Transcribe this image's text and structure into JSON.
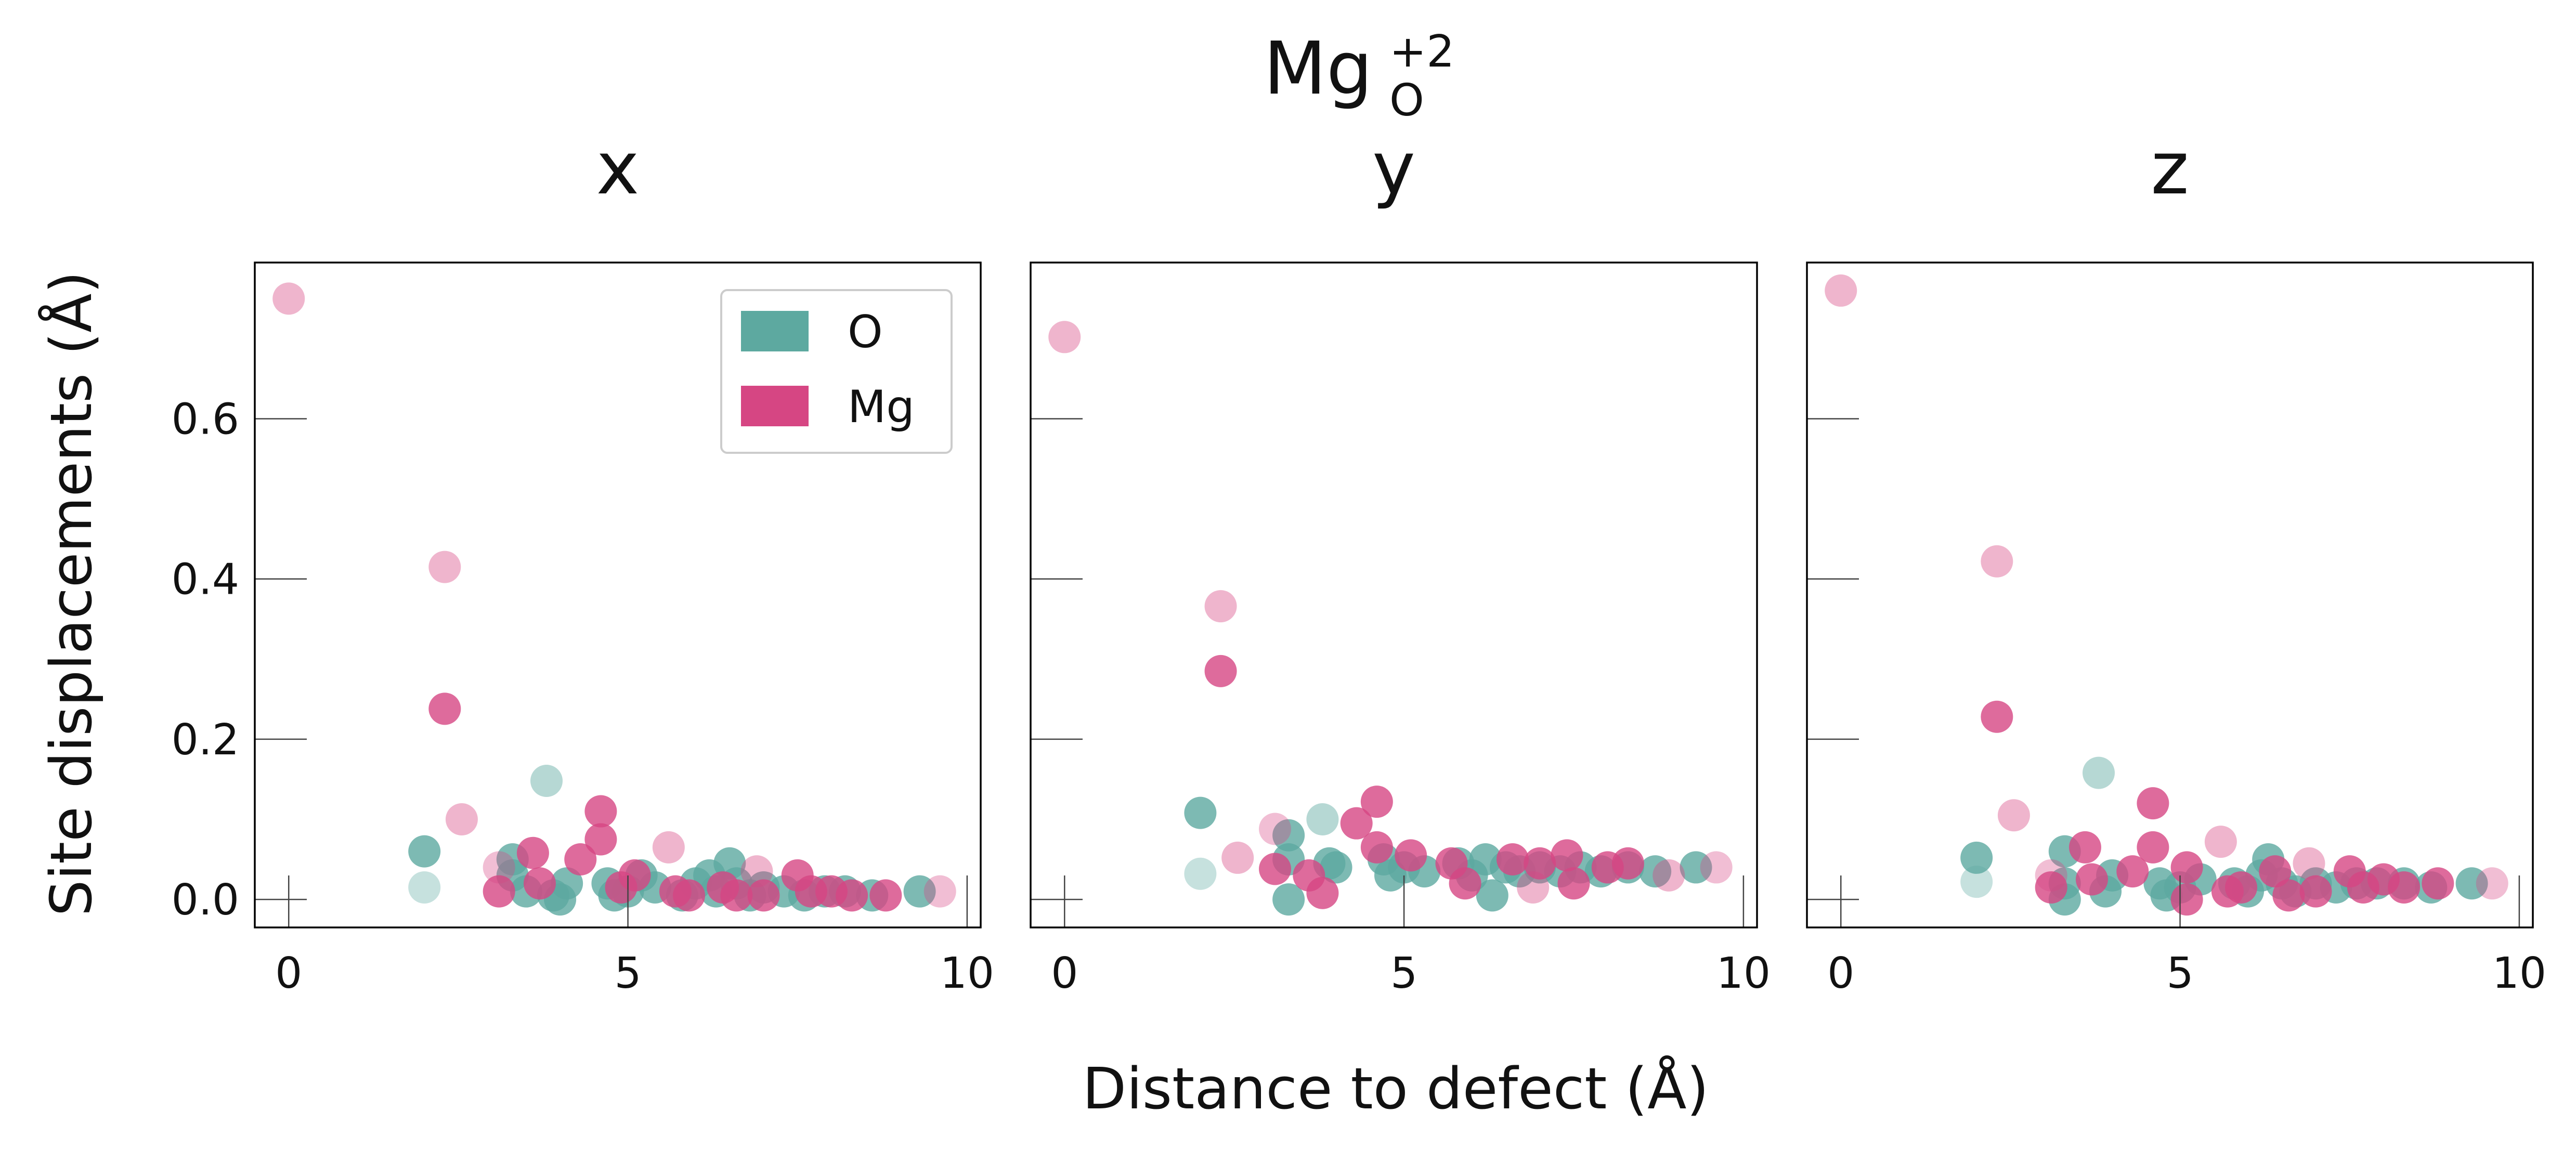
{
  "figure": {
    "title_base": "Mg",
    "title_sup": "+2",
    "title_sub": "O",
    "xlabel": "Distance to defect (Å)",
    "ylabel": "Site displacements (Å)"
  },
  "legend": {
    "items": [
      {
        "label": "O",
        "color": "#5DA9A0"
      },
      {
        "label": "Mg",
        "color": "#D64683"
      }
    ],
    "placement": "top-right of first panel"
  },
  "chart_data": [
    {
      "type": "scatter",
      "title": "x",
      "xlim": [
        -0.5,
        10.2
      ],
      "ylim": [
        -0.035,
        0.795
      ],
      "xticks": [
        0,
        5,
        10
      ],
      "xticklabels": [
        "0",
        "5",
        "10"
      ],
      "yticks": [
        0.0,
        0.2,
        0.4,
        0.6
      ],
      "yticklabels": [
        "0.0",
        "0.2",
        "0.4",
        "0.6"
      ],
      "grid": false,
      "series": [
        {
          "name": "O",
          "color": "#5DA9A0",
          "points": [
            [
              2.0,
              0.015,
              0.35
            ],
            [
              2.0,
              0.06,
              0.8
            ],
            [
              3.3,
              0.05,
              0.8
            ],
            [
              3.3,
              0.03,
              0.8
            ],
            [
              3.5,
              0.01,
              0.8
            ],
            [
              3.8,
              0.148,
              0.45
            ],
            [
              3.9,
              0.005,
              0.8
            ],
            [
              4.0,
              0.0,
              0.8
            ],
            [
              4.1,
              0.02,
              0.8
            ],
            [
              4.7,
              0.02,
              0.8
            ],
            [
              4.8,
              0.005,
              0.8
            ],
            [
              5.0,
              0.01,
              0.8
            ],
            [
              5.2,
              0.03,
              0.8
            ],
            [
              5.4,
              0.015,
              0.8
            ],
            [
              5.8,
              0.005,
              0.8
            ],
            [
              6.0,
              0.02,
              0.8
            ],
            [
              6.2,
              0.03,
              0.8
            ],
            [
              6.3,
              0.01,
              0.8
            ],
            [
              6.5,
              0.045,
              0.8
            ],
            [
              6.6,
              0.02,
              0.8
            ],
            [
              6.8,
              0.005,
              0.8
            ],
            [
              7.0,
              0.015,
              0.8
            ],
            [
              7.3,
              0.01,
              0.8
            ],
            [
              7.6,
              0.005,
              0.8
            ],
            [
              7.9,
              0.01,
              0.8
            ],
            [
              8.2,
              0.01,
              0.8
            ],
            [
              8.6,
              0.005,
              0.8
            ],
            [
              9.3,
              0.01,
              0.8
            ]
          ]
        },
        {
          "name": "Mg",
          "color": "#D64683",
          "points": [
            [
              0.0,
              0.75,
              0.4
            ],
            [
              2.3,
              0.415,
              0.4
            ],
            [
              2.3,
              0.238,
              0.8
            ],
            [
              2.55,
              0.1,
              0.4
            ],
            [
              3.1,
              0.04,
              0.35
            ],
            [
              3.1,
              0.01,
              0.8
            ],
            [
              3.6,
              0.058,
              0.8
            ],
            [
              3.7,
              0.02,
              0.8
            ],
            [
              4.3,
              0.05,
              0.8
            ],
            [
              4.6,
              0.11,
              0.8
            ],
            [
              4.6,
              0.075,
              0.8
            ],
            [
              4.9,
              0.015,
              0.8
            ],
            [
              5.1,
              0.03,
              0.8
            ],
            [
              5.6,
              0.065,
              0.4
            ],
            [
              5.7,
              0.01,
              0.8
            ],
            [
              5.9,
              0.005,
              0.8
            ],
            [
              6.4,
              0.015,
              0.8
            ],
            [
              6.6,
              0.005,
              0.8
            ],
            [
              6.9,
              0.035,
              0.4
            ],
            [
              7.0,
              0.005,
              0.8
            ],
            [
              7.5,
              0.03,
              0.8
            ],
            [
              7.7,
              0.01,
              0.8
            ],
            [
              8.0,
              0.01,
              0.8
            ],
            [
              8.3,
              0.005,
              0.8
            ],
            [
              8.8,
              0.005,
              0.8
            ],
            [
              9.6,
              0.01,
              0.35
            ]
          ]
        }
      ]
    },
    {
      "type": "scatter",
      "title": "y",
      "xlim": [
        -0.5,
        10.2
      ],
      "ylim": [
        -0.035,
        0.795
      ],
      "xticks": [
        0,
        5,
        10
      ],
      "xticklabels": [
        "0",
        "5",
        "10"
      ],
      "yticks": [
        0.0,
        0.2,
        0.4,
        0.6
      ],
      "yticklabels": [],
      "grid": false,
      "series": [
        {
          "name": "O",
          "color": "#5DA9A0",
          "points": [
            [
              2.0,
              0.032,
              0.35
            ],
            [
              2.0,
              0.108,
              0.8
            ],
            [
              3.3,
              0.08,
              0.8
            ],
            [
              3.3,
              0.05,
              0.8
            ],
            [
              3.3,
              0.0,
              0.8
            ],
            [
              3.8,
              0.1,
              0.45
            ],
            [
              3.9,
              0.045,
              0.8
            ],
            [
              4.0,
              0.04,
              0.8
            ],
            [
              4.7,
              0.05,
              0.8
            ],
            [
              4.8,
              0.03,
              0.8
            ],
            [
              5.0,
              0.04,
              0.8
            ],
            [
              5.3,
              0.035,
              0.8
            ],
            [
              5.8,
              0.045,
              0.8
            ],
            [
              6.0,
              0.03,
              0.8
            ],
            [
              6.2,
              0.05,
              0.8
            ],
            [
              6.3,
              0.005,
              0.8
            ],
            [
              6.5,
              0.04,
              0.8
            ],
            [
              6.7,
              0.035,
              0.8
            ],
            [
              7.0,
              0.04,
              0.8
            ],
            [
              7.3,
              0.035,
              0.8
            ],
            [
              7.6,
              0.04,
              0.8
            ],
            [
              7.9,
              0.035,
              0.8
            ],
            [
              8.3,
              0.04,
              0.8
            ],
            [
              8.7,
              0.035,
              0.8
            ],
            [
              9.3,
              0.04,
              0.8
            ]
          ]
        },
        {
          "name": "Mg",
          "color": "#D64683",
          "points": [
            [
              0.0,
              0.702,
              0.4
            ],
            [
              2.3,
              0.366,
              0.4
            ],
            [
              2.3,
              0.285,
              0.8
            ],
            [
              2.55,
              0.052,
              0.4
            ],
            [
              3.1,
              0.088,
              0.35
            ],
            [
              3.1,
              0.038,
              0.8
            ],
            [
              3.6,
              0.03,
              0.8
            ],
            [
              3.8,
              0.008,
              0.8
            ],
            [
              4.3,
              0.095,
              0.8
            ],
            [
              4.6,
              0.122,
              0.8
            ],
            [
              4.6,
              0.065,
              0.8
            ],
            [
              5.1,
              0.055,
              0.8
            ],
            [
              5.7,
              0.045,
              0.8
            ],
            [
              5.9,
              0.02,
              0.8
            ],
            [
              6.6,
              0.05,
              0.8
            ],
            [
              6.9,
              0.015,
              0.4
            ],
            [
              7.0,
              0.045,
              0.8
            ],
            [
              7.4,
              0.055,
              0.8
            ],
            [
              7.5,
              0.02,
              0.8
            ],
            [
              8.0,
              0.04,
              0.8
            ],
            [
              8.3,
              0.045,
              0.8
            ],
            [
              8.9,
              0.03,
              0.4
            ],
            [
              9.6,
              0.04,
              0.35
            ]
          ]
        }
      ]
    },
    {
      "type": "scatter",
      "title": "z",
      "xlim": [
        -0.5,
        10.2
      ],
      "ylim": [
        -0.035,
        0.795
      ],
      "xticks": [
        0,
        5,
        10
      ],
      "xticklabels": [
        "0",
        "5",
        "10"
      ],
      "yticks": [
        0.0,
        0.2,
        0.4,
        0.6
      ],
      "yticklabels": [],
      "grid": false,
      "series": [
        {
          "name": "O",
          "color": "#5DA9A0",
          "points": [
            [
              2.0,
              0.022,
              0.35
            ],
            [
              2.0,
              0.052,
              0.8
            ],
            [
              3.3,
              0.06,
              0.8
            ],
            [
              3.3,
              0.02,
              0.8
            ],
            [
              3.3,
              0.0,
              0.8
            ],
            [
              3.8,
              0.158,
              0.45
            ],
            [
              3.9,
              0.01,
              0.8
            ],
            [
              4.0,
              0.03,
              0.8
            ],
            [
              4.7,
              0.02,
              0.8
            ],
            [
              4.8,
              0.005,
              0.8
            ],
            [
              5.0,
              0.015,
              0.8
            ],
            [
              5.3,
              0.025,
              0.8
            ],
            [
              5.8,
              0.02,
              0.8
            ],
            [
              6.0,
              0.01,
              0.8
            ],
            [
              6.2,
              0.03,
              0.8
            ],
            [
              6.3,
              0.05,
              0.8
            ],
            [
              6.5,
              0.02,
              0.8
            ],
            [
              6.7,
              0.01,
              0.8
            ],
            [
              7.0,
              0.02,
              0.8
            ],
            [
              7.3,
              0.015,
              0.8
            ],
            [
              7.6,
              0.02,
              0.8
            ],
            [
              7.9,
              0.02,
              0.8
            ],
            [
              8.3,
              0.02,
              0.8
            ],
            [
              8.7,
              0.015,
              0.8
            ],
            [
              9.3,
              0.02,
              0.8
            ]
          ]
        },
        {
          "name": "Mg",
          "color": "#D64683",
          "points": [
            [
              0.0,
              0.76,
              0.4
            ],
            [
              2.3,
              0.422,
              0.4
            ],
            [
              2.3,
              0.228,
              0.8
            ],
            [
              2.55,
              0.105,
              0.4
            ],
            [
              3.1,
              0.03,
              0.35
            ],
            [
              3.1,
              0.015,
              0.8
            ],
            [
              3.6,
              0.065,
              0.8
            ],
            [
              3.7,
              0.025,
              0.8
            ],
            [
              4.3,
              0.035,
              0.8
            ],
            [
              4.6,
              0.12,
              0.8
            ],
            [
              4.6,
              0.065,
              0.8
            ],
            [
              5.1,
              0.0,
              0.8
            ],
            [
              5.1,
              0.04,
              0.8
            ],
            [
              5.6,
              0.072,
              0.4
            ],
            [
              5.7,
              0.01,
              0.8
            ],
            [
              5.9,
              0.015,
              0.8
            ],
            [
              6.4,
              0.035,
              0.8
            ],
            [
              6.6,
              0.005,
              0.8
            ],
            [
              6.9,
              0.045,
              0.4
            ],
            [
              7.0,
              0.01,
              0.8
            ],
            [
              7.5,
              0.035,
              0.8
            ],
            [
              7.7,
              0.015,
              0.8
            ],
            [
              8.0,
              0.025,
              0.8
            ],
            [
              8.3,
              0.015,
              0.8
            ],
            [
              8.8,
              0.02,
              0.8
            ],
            [
              9.6,
              0.02,
              0.35
            ]
          ]
        }
      ]
    }
  ]
}
